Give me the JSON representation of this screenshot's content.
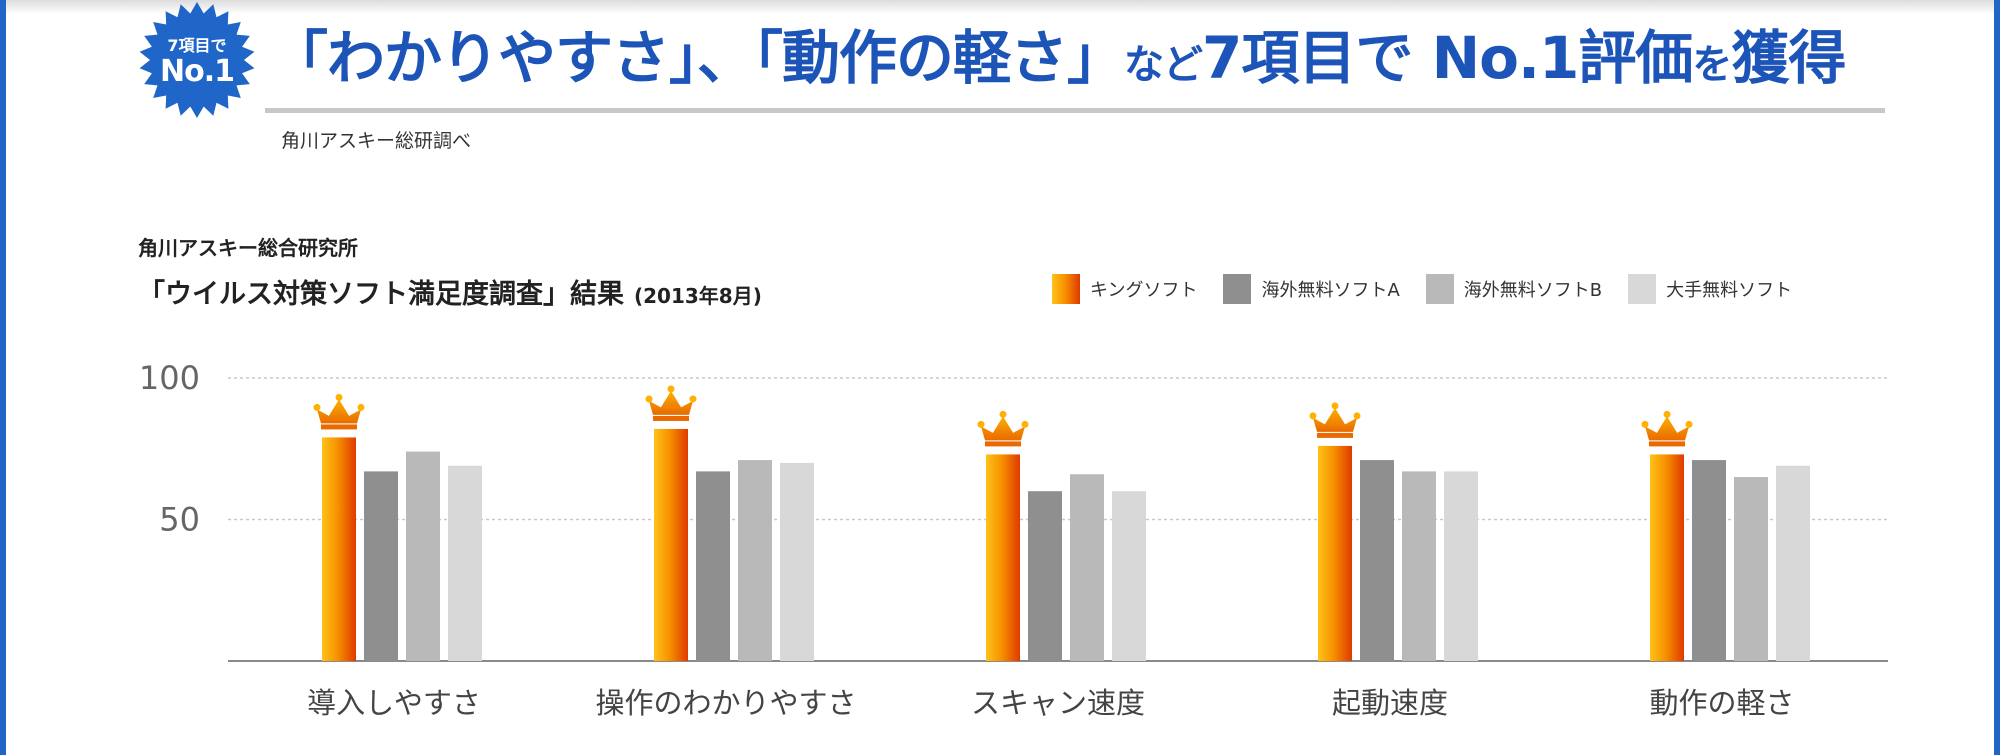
{
  "headline": {
    "badge_line1": "7項目で",
    "badge_line2": "No.1",
    "part1": "「わかりやすさ」、「動作の軽さ」",
    "part2": "など",
    "part3": "7項目で",
    "part4": " No.1評価",
    "part5": "を",
    "part6": "獲得"
  },
  "source_note": "角川アスキー総研調べ",
  "colors": {
    "brand_blue": "#1c54b8",
    "badge_blue": "#1f66c8"
  },
  "chart_data": {
    "type": "bar",
    "org": "角川アスキー総合研究所",
    "title": "「ウイルス対策ソフト満足度調査」結果",
    "date": "(2013年8月)",
    "categories": [
      "導入しやすさ",
      "操作のわかりやすさ",
      "スキャン速度",
      "起動速度",
      "動作の軽さ"
    ],
    "series": [
      {
        "name": "キングソフト",
        "color": "#f07a00",
        "values": [
          79,
          82,
          73,
          76,
          73
        ]
      },
      {
        "name": "海外無料ソフトA",
        "color": "#8f8f8f",
        "values": [
          67,
          67,
          60,
          71,
          71
        ]
      },
      {
        "name": "海外無料ソフトB",
        "color": "#b9b9b9",
        "values": [
          74,
          71,
          66,
          67,
          65
        ]
      },
      {
        "name": "大手無料ソフト",
        "color": "#d8d8d8",
        "values": [
          69,
          70,
          60,
          67,
          69
        ]
      }
    ],
    "y_ticks": [
      100,
      50
    ],
    "ylim": [
      0,
      100
    ],
    "grid": true,
    "legend_position": "top-right",
    "winner_marker": "crown-icon"
  }
}
